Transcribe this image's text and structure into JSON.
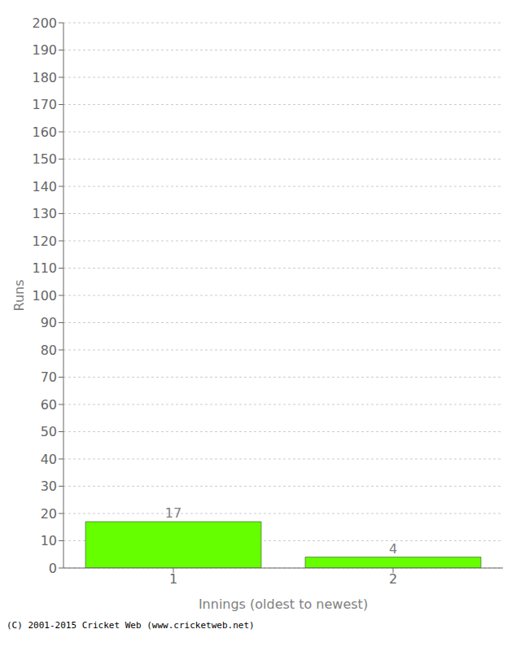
{
  "chart_data": {
    "type": "bar",
    "xlabel": "Innings (oldest to newest)",
    "ylabel": "Runs",
    "categories": [
      "1",
      "2"
    ],
    "values": [
      17,
      4
    ],
    "color": "#66ff00",
    "data_labels": true,
    "ylim": [
      0,
      200
    ],
    "yticks": [
      0,
      10,
      20,
      30,
      40,
      50,
      60,
      70,
      80,
      90,
      100,
      110,
      120,
      130,
      140,
      150,
      160,
      170,
      180,
      190,
      200
    ],
    "grid": true,
    "footer": "(C) 2001-2015 Cricket Web (www.cricketweb.net)"
  }
}
